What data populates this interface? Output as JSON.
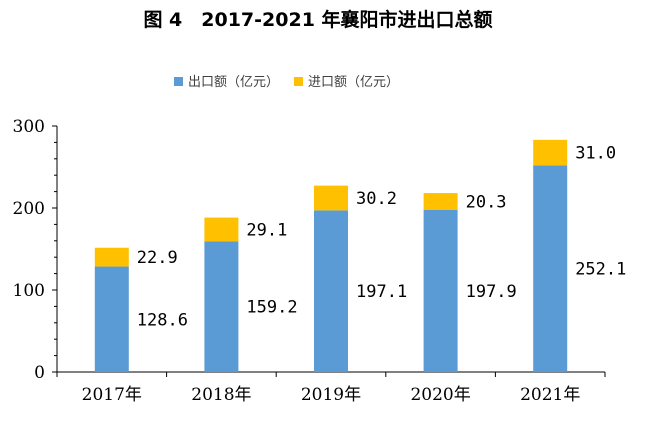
{
  "colors": {
    "export": "#5b9bd5",
    "import": "#ffc000",
    "axis": "#000000"
  },
  "chart_data": {
    "type": "bar",
    "stacked": true,
    "title": "图 4　2017-2021 年襄阳市进出口总额",
    "categories": [
      "2017年",
      "2018年",
      "2019年",
      "2020年",
      "2021年"
    ],
    "series": [
      {
        "name": "出口额（亿元）",
        "color": "#5b9bd5",
        "values": [
          128.6,
          159.2,
          197.1,
          197.9,
          252.1
        ],
        "labels": [
          "128.6",
          "159.2",
          "197.1",
          "197.9",
          "252.1"
        ]
      },
      {
        "name": "进口额（亿元）",
        "color": "#ffc000",
        "values": [
          22.9,
          29.1,
          30.2,
          20.3,
          31.0
        ],
        "labels": [
          "22.9",
          "29.1",
          "30.2",
          "20.3",
          "31.0"
        ]
      }
    ],
    "ylim": [
      0,
      300
    ],
    "yticks": [
      0,
      100,
      200,
      300
    ],
    "ytick_labels": [
      "0",
      "100",
      "200",
      "300"
    ],
    "xlabel": "",
    "ylabel": "",
    "legend_position": "top-center",
    "grid": false
  }
}
